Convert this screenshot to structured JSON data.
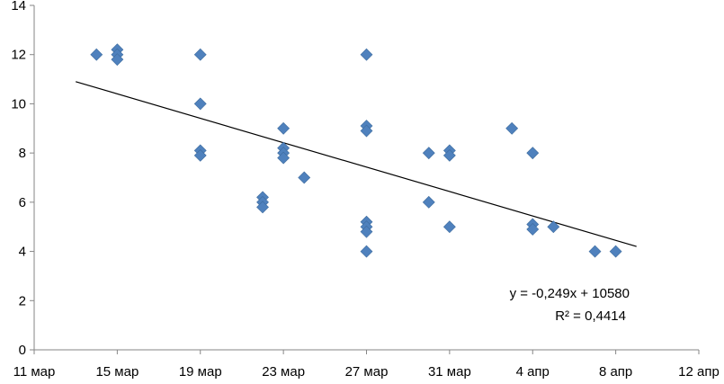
{
  "chart_data": {
    "type": "scatter",
    "title": "",
    "xlabel": "",
    "ylabel": "",
    "xlim": [
      "11 мар",
      "12 апр"
    ],
    "ylim": [
      0,
      14
    ],
    "grid": false,
    "y_ticks": [
      "0",
      "2",
      "4",
      "6",
      "8",
      "10",
      "12",
      "14"
    ],
    "x_ticks": [
      "11 мар",
      "15 мар",
      "19 мар",
      "23 мар",
      "27 мар",
      "31 мар",
      "4 апр",
      "8 апр",
      "12 апр"
    ],
    "marker_color": "#4F81BD",
    "trendline_color": "#000000",
    "points": [
      {
        "x": "14 мар",
        "y": 12
      },
      {
        "x": "15 мар",
        "y": 12.2
      },
      {
        "x": "15 мар",
        "y": 12
      },
      {
        "x": "15 мар",
        "y": 11.8
      },
      {
        "x": "19 мар",
        "y": 12
      },
      {
        "x": "19 мар",
        "y": 10
      },
      {
        "x": "19 мар",
        "y": 8.1
      },
      {
        "x": "19 мар",
        "y": 7.9
      },
      {
        "x": "22 мар",
        "y": 6.2
      },
      {
        "x": "22 мар",
        "y": 6
      },
      {
        "x": "22 мар",
        "y": 5.8
      },
      {
        "x": "23 мар",
        "y": 9
      },
      {
        "x": "23 мар",
        "y": 8.2
      },
      {
        "x": "23 мар",
        "y": 8
      },
      {
        "x": "23 мар",
        "y": 7.8
      },
      {
        "x": "24 мар",
        "y": 7
      },
      {
        "x": "27 мар",
        "y": 12
      },
      {
        "x": "27 мар",
        "y": 9.1
      },
      {
        "x": "27 мар",
        "y": 8.9
      },
      {
        "x": "27 мар",
        "y": 5.2
      },
      {
        "x": "27 мар",
        "y": 5
      },
      {
        "x": "27 мар",
        "y": 4.8
      },
      {
        "x": "27 мар",
        "y": 4
      },
      {
        "x": "30 мар",
        "y": 8
      },
      {
        "x": "30 мар",
        "y": 6
      },
      {
        "x": "31 мар",
        "y": 8.1
      },
      {
        "x": "31 мар",
        "y": 7.9
      },
      {
        "x": "31 мар",
        "y": 5
      },
      {
        "x": "3 апр",
        "y": 9
      },
      {
        "x": "4 апр",
        "y": 8
      },
      {
        "x": "4 апр",
        "y": 5.1
      },
      {
        "x": "4 апр",
        "y": 4.9
      },
      {
        "x": "5 апр",
        "y": 5
      },
      {
        "x": "7 апр",
        "y": 4
      },
      {
        "x": "8 апр",
        "y": 4
      }
    ],
    "trendline": {
      "from": {
        "x": "13 мар",
        "y": 10.9
      },
      "to": {
        "x": "9 апр",
        "y": 4.2
      },
      "equation": "y = -0,249x + 10580",
      "r_squared": "R² = 0,4414"
    }
  }
}
